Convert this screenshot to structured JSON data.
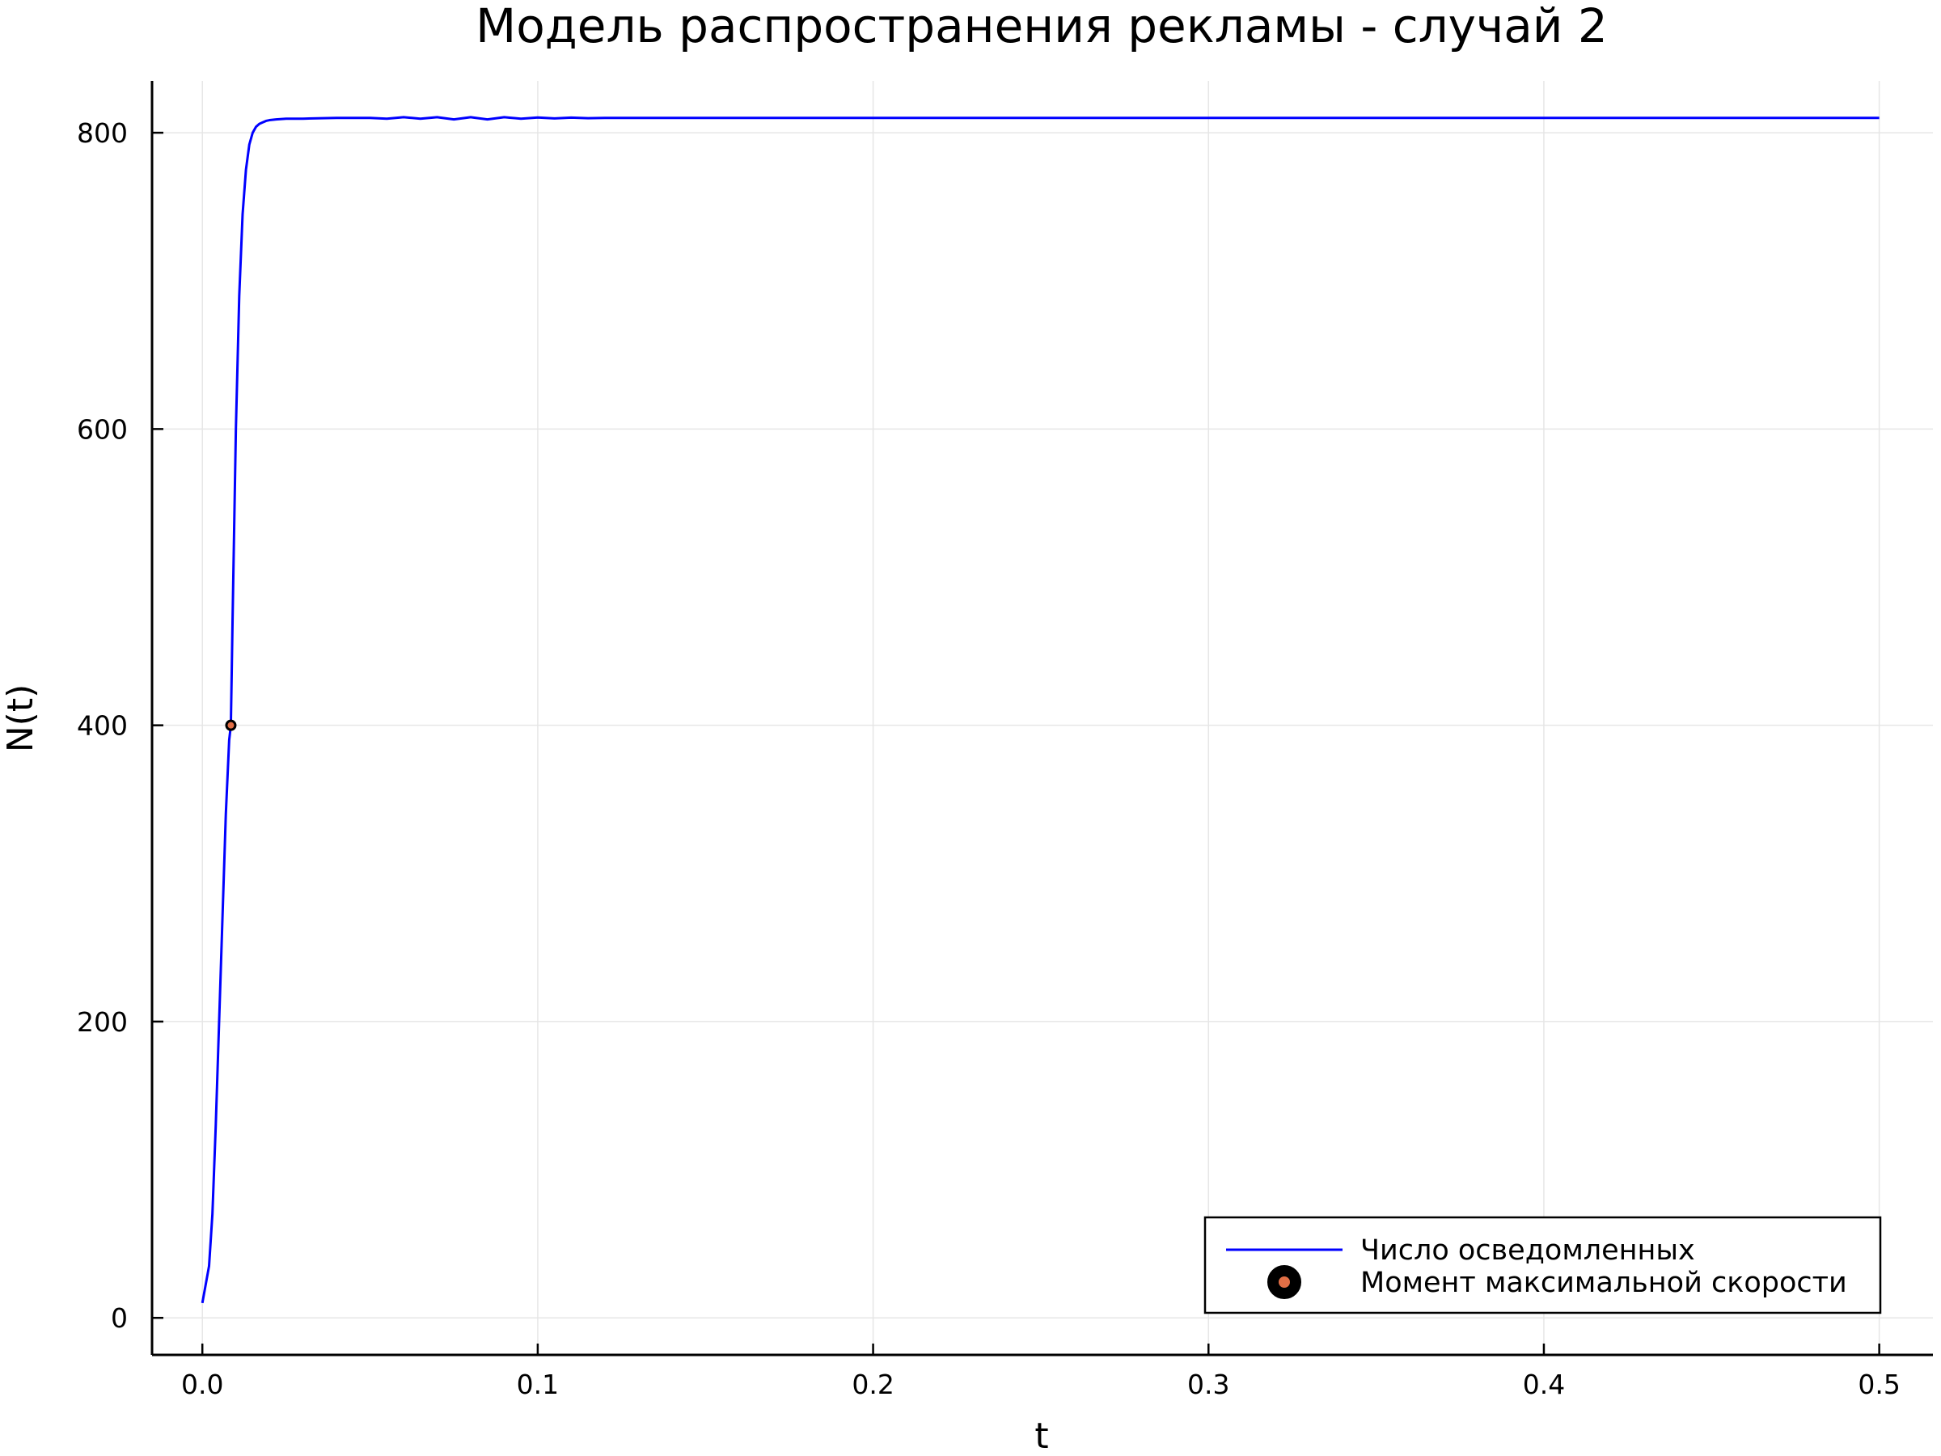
{
  "chart_data": {
    "type": "line",
    "title": "Модель распространения рекламы - случай 2",
    "xlabel": "t",
    "ylabel": "N(t)",
    "xlim": [
      -0.015,
      0.516
    ],
    "ylim": [
      -25,
      835
    ],
    "xticks": [
      0.0,
      0.1,
      0.2,
      0.3,
      0.4,
      0.5
    ],
    "xtick_labels": [
      "0.0",
      "0.1",
      "0.2",
      "0.3",
      "0.4",
      "0.5"
    ],
    "yticks": [
      0,
      200,
      400,
      600,
      800
    ],
    "ytick_labels": [
      "0",
      "200",
      "400",
      "600",
      "800"
    ],
    "grid": true,
    "legend_position": "bottom-right",
    "series": [
      {
        "name": "Число осведомленных",
        "kind": "line",
        "color": "#0000ff",
        "x": [
          0.0,
          0.002,
          0.003,
          0.004,
          0.005,
          0.006,
          0.007,
          0.008,
          0.0085,
          0.009,
          0.01,
          0.011,
          0.012,
          0.013,
          0.014,
          0.015,
          0.016,
          0.017,
          0.018,
          0.019,
          0.02,
          0.022,
          0.025,
          0.03,
          0.04,
          0.05,
          0.055,
          0.06,
          0.065,
          0.07,
          0.075,
          0.08,
          0.085,
          0.09,
          0.095,
          0.1,
          0.105,
          0.11,
          0.115,
          0.12,
          0.15,
          0.2,
          0.3,
          0.4,
          0.5
        ],
        "y": [
          10,
          35,
          70,
          130,
          200,
          270,
          340,
          390,
          400,
          470,
          600,
          690,
          745,
          775,
          792,
          800,
          804,
          806,
          807,
          808,
          808.5,
          809,
          809.5,
          809.5,
          810,
          810,
          809.5,
          810.5,
          809.5,
          810.5,
          809,
          810.5,
          809,
          810.5,
          809.5,
          810.3,
          809.7,
          810.2,
          809.8,
          810,
          810,
          810,
          810,
          810,
          810
        ]
      },
      {
        "name": "Момент максимальной скорости",
        "kind": "scatter",
        "color": "#e26f46",
        "x": [
          0.0085
        ],
        "y": [
          400
        ]
      }
    ]
  }
}
